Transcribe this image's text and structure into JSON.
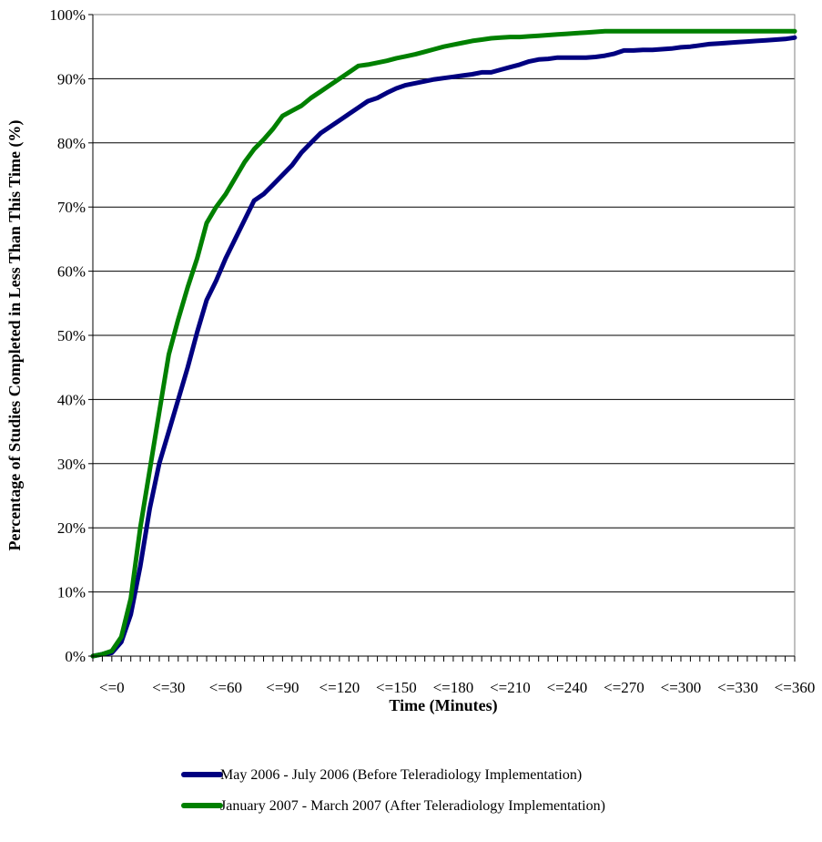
{
  "chart_data": {
    "type": "line",
    "xlabel": "Time (Minutes)",
    "ylabel": "Percentage of Studies Completed in Less Than This Time (%)",
    "x_tick_labels": [
      "<=0",
      "<=30",
      "<=60",
      "<=90",
      "<=120",
      "<=150",
      "<=180",
      "<=210",
      "<=240",
      "<=270",
      "<=300",
      "<=330",
      "<=360"
    ],
    "y_tick_labels": [
      "0%",
      "10%",
      "20%",
      "30%",
      "40%",
      "50%",
      "60%",
      "70%",
      "80%",
      "90%",
      "100%"
    ],
    "xlim": [
      -10,
      360
    ],
    "ylim": [
      0,
      100
    ],
    "grid": "horizontal",
    "legend_position": "bottom",
    "x": [
      -10,
      -5,
      0,
      5,
      10,
      15,
      20,
      25,
      30,
      35,
      40,
      45,
      50,
      55,
      60,
      65,
      70,
      75,
      80,
      85,
      90,
      95,
      100,
      105,
      110,
      115,
      120,
      125,
      130,
      135,
      140,
      145,
      150,
      155,
      160,
      165,
      170,
      175,
      180,
      185,
      190,
      195,
      200,
      205,
      210,
      215,
      220,
      225,
      230,
      235,
      240,
      245,
      250,
      255,
      260,
      265,
      270,
      275,
      280,
      285,
      290,
      295,
      300,
      305,
      310,
      315,
      320,
      325,
      330,
      335,
      340,
      345,
      350,
      355,
      360
    ],
    "series": [
      {
        "name": "May 2006 - July 2006 (Before Teleradiology Implementation)",
        "color": "#000080",
        "values": [
          0,
          0.3,
          0.5,
          2.2,
          6.5,
          14,
          23,
          30,
          35,
          40,
          45,
          50.5,
          55.5,
          58.5,
          62,
          65,
          68,
          71,
          72,
          73.5,
          75,
          76.5,
          78.5,
          80,
          81.5,
          82.5,
          83.5,
          84.5,
          85.5,
          86.5,
          87,
          87.8,
          88.5,
          89,
          89.3,
          89.6,
          89.9,
          90.1,
          90.3,
          90.5,
          90.7,
          91,
          91,
          91.4,
          91.8,
          92.2,
          92.7,
          93,
          93.1,
          93.3,
          93.3,
          93.3,
          93.3,
          93.4,
          93.6,
          93.9,
          94.4,
          94.4,
          94.5,
          94.5,
          94.6,
          94.7,
          94.9,
          95,
          95.2,
          95.4,
          95.5,
          95.6,
          95.7,
          95.8,
          95.9,
          96,
          96.1,
          96.2,
          96.4
        ]
      },
      {
        "name": "January 2007 - March 2007 (After Teleradiology Implementation)",
        "color": "#008000",
        "values": [
          0,
          0.3,
          0.8,
          3,
          9,
          20,
          29,
          38,
          47,
          52.5,
          57.5,
          62,
          67.5,
          70,
          72,
          74.5,
          77,
          79,
          80.5,
          82.2,
          84.2,
          85,
          85.8,
          87,
          88,
          89,
          90,
          91,
          92,
          92.2,
          92.5,
          92.8,
          93.2,
          93.5,
          93.8,
          94.2,
          94.6,
          95,
          95.3,
          95.6,
          95.9,
          96.1,
          96.3,
          96.4,
          96.5,
          96.5,
          96.6,
          96.7,
          96.8,
          96.9,
          97,
          97.1,
          97.2,
          97.3,
          97.4,
          97.4,
          97.4,
          97.4,
          97.4,
          97.4,
          97.4,
          97.4,
          97.4,
          97.4,
          97.4,
          97.4,
          97.4,
          97.4,
          97.4,
          97.4,
          97.4,
          97.4,
          97.4,
          97.4,
          97.4
        ]
      }
    ]
  }
}
